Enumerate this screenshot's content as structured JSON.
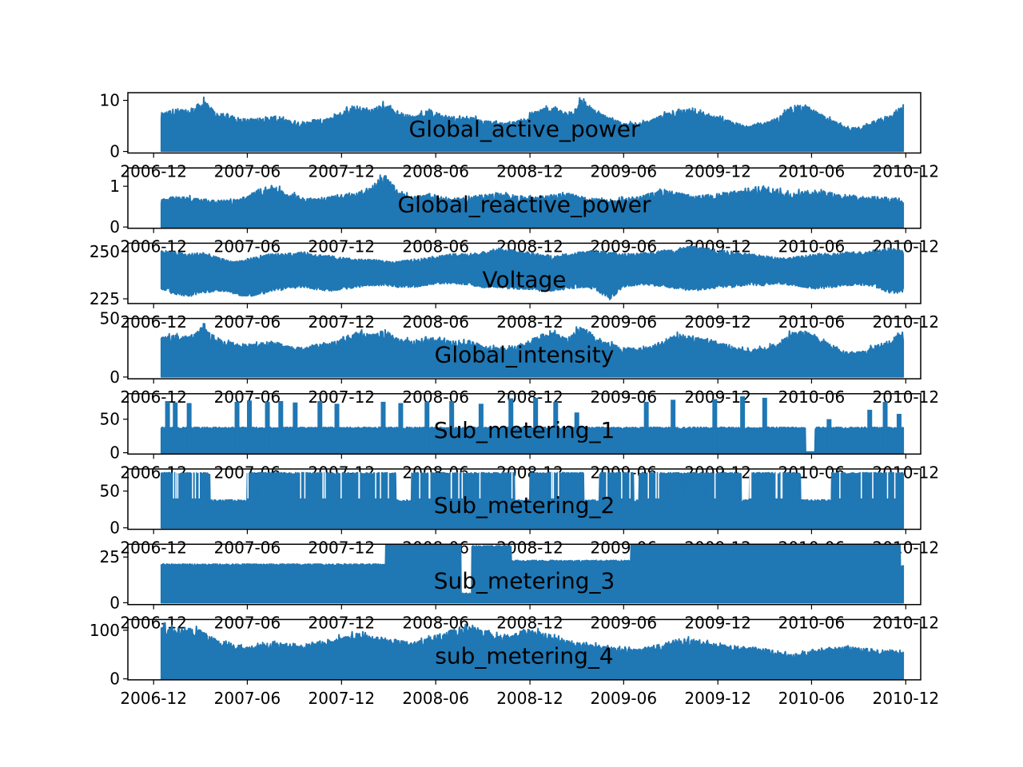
{
  "chart_data": {
    "type": "line",
    "line_color": "#1f77b4",
    "title": "",
    "xlabel": "",
    "x_range": [
      "2006-12-16",
      "2010-11-26"
    ],
    "xlim": [
      "2006-10-12",
      "2010-12-30"
    ],
    "x_ticks": [
      "2006-12",
      "2007-06",
      "2007-12",
      "2008-06",
      "2008-12",
      "2009-06",
      "2009-12",
      "2010-06",
      "2010-12"
    ],
    "x_tick_dates": [
      "2006-12-01",
      "2007-06-01",
      "2007-12-01",
      "2008-06-01",
      "2008-12-01",
      "2009-06-01",
      "2009-12-01",
      "2010-06-01",
      "2010-12-01"
    ],
    "grid": false,
    "legend": "none",
    "panels": [
      {
        "name": "Global_active_power",
        "ylim": [
          -0.3,
          11.5
        ],
        "y_ticks": [
          0,
          10
        ],
        "y_tick_labels": [
          "0",
          "10"
        ],
        "y_min_value": 0.08,
        "upper_envelope": [
          8,
          9,
          8.5,
          10.8,
          8,
          7.5,
          6.8,
          7,
          7.5,
          6.5,
          6,
          6.8,
          7,
          8.5,
          9.5,
          9,
          10,
          8,
          7.5,
          8.5,
          8,
          7,
          7.5,
          6.5,
          6,
          6,
          7,
          9,
          9.5,
          8,
          11.1,
          8.5,
          7,
          6,
          5.8,
          6.5,
          8,
          9,
          8.5,
          8,
          7,
          6,
          5.5,
          6,
          7,
          9.5,
          9.8,
          8,
          6.5,
          5,
          5,
          6.5,
          7.5,
          9.8
        ],
        "base_level": [
          3.5,
          4,
          3.8,
          4,
          3.2,
          3,
          2.8,
          2.8,
          3,
          2.6,
          2.4,
          2.8,
          3,
          3.5,
          3.8,
          3.6,
          3.8,
          3.4,
          3,
          3.4,
          3.2,
          2.8,
          3,
          2.6,
          2.4,
          2.4,
          2.8,
          3.6,
          3.8,
          3.4,
          4,
          3.4,
          3,
          2.6,
          2.4,
          2.8,
          3.2,
          3.6,
          3.4,
          3.2,
          2.8,
          2.4,
          2.2,
          2.4,
          2.8,
          3.6,
          3.8,
          3.2,
          2.6,
          2,
          2,
          2.6,
          3,
          3.8
        ]
      },
      {
        "name": "Global_reactive_power",
        "ylim": [
          -0.03,
          1.45
        ],
        "y_ticks": [
          0,
          1
        ],
        "y_tick_labels": [
          "0",
          "1"
        ],
        "y_min_value": 0,
        "upper_envelope": [
          0.75,
          0.8,
          0.78,
          0.75,
          0.7,
          0.72,
          0.8,
          1,
          1.1,
          0.9,
          0.8,
          0.75,
          0.8,
          0.85,
          0.9,
          1.1,
          1.4,
          0.9,
          0.8,
          0.85,
          0.8,
          0.75,
          0.8,
          0.85,
          0.9,
          0.85,
          0.8,
          0.8,
          0.85,
          0.9,
          0.8,
          0.75,
          0.7,
          0.75,
          0.8,
          0.9,
          1,
          0.9,
          0.8,
          0.85,
          0.9,
          0.95,
          1,
          1.1,
          1,
          0.9,
          0.95,
          1,
          0.9,
          0.85,
          0.8,
          0.8,
          0.78,
          0.75
        ],
        "base_level": [
          0.28,
          0.3,
          0.3,
          0.28,
          0.25,
          0.26,
          0.3,
          0.35,
          0.38,
          0.32,
          0.3,
          0.28,
          0.3,
          0.32,
          0.33,
          0.36,
          0.4,
          0.32,
          0.3,
          0.31,
          0.3,
          0.28,
          0.3,
          0.31,
          0.32,
          0.31,
          0.3,
          0.3,
          0.31,
          0.32,
          0.3,
          0.28,
          0.26,
          0.28,
          0.3,
          0.32,
          0.35,
          0.32,
          0.3,
          0.31,
          0.32,
          0.33,
          0.35,
          0.37,
          0.35,
          0.32,
          0.33,
          0.35,
          0.32,
          0.31,
          0.3,
          0.3,
          0.29,
          0.28
        ]
      },
      {
        "name": "Voltage",
        "ylim": [
          222.5,
          254.5
        ],
        "y_ticks": [
          225,
          250
        ],
        "y_tick_labels": [
          "225",
          "250"
        ],
        "upper_envelope": [
          251,
          250,
          249,
          250,
          247,
          245,
          246,
          248,
          249,
          249,
          250,
          249,
          248,
          247,
          246,
          246,
          245,
          245,
          246,
          247,
          248,
          249,
          249,
          250,
          252,
          251,
          250,
          249,
          248,
          249,
          250,
          251,
          250,
          249,
          249,
          250,
          251,
          252,
          253,
          252,
          251,
          250,
          249,
          248,
          247,
          247,
          248,
          249,
          249,
          250,
          250,
          251,
          252,
          251
        ],
        "lower_envelope": [
          230,
          227,
          226,
          228,
          229,
          228,
          226,
          227,
          229,
          230,
          231,
          230,
          229,
          230,
          231,
          232,
          232,
          231,
          231,
          232,
          233,
          233,
          232,
          231,
          231,
          230,
          230,
          229,
          229,
          230,
          231,
          230,
          224,
          231,
          232,
          232,
          231,
          230,
          229,
          230,
          231,
          231,
          232,
          232,
          233,
          232,
          231,
          230,
          231,
          232,
          232,
          231,
          228,
          228
        ]
      },
      {
        "name": "Global_intensity",
        "ylim": [
          -1.5,
          50
        ],
        "y_ticks": [
          0,
          50
        ],
        "y_tick_labels": [
          "0",
          "50"
        ],
        "y_min_value": 0.2,
        "upper_envelope": [
          36,
          38,
          37,
          47,
          35,
          32,
          30,
          31,
          33,
          29,
          27,
          30,
          31,
          37,
          41,
          39,
          43,
          35,
          33,
          37,
          35,
          31,
          33,
          29,
          27,
          27,
          31,
          39,
          41,
          35,
          48,
          37,
          31,
          27,
          26,
          29,
          35,
          39,
          37,
          35,
          31,
          27,
          25,
          27,
          31,
          41,
          42,
          35,
          29,
          23,
          23,
          29,
          33,
          42
        ],
        "base_level": [
          15,
          17,
          16,
          17,
          14,
          13,
          12,
          12,
          13,
          11,
          10,
          12,
          13,
          15,
          16,
          15,
          16,
          15,
          13,
          15,
          14,
          12,
          13,
          11,
          10,
          10,
          12,
          15,
          16,
          15,
          17,
          15,
          13,
          11,
          10,
          12,
          14,
          15,
          15,
          14,
          12,
          10,
          9,
          10,
          12,
          15,
          16,
          14,
          11,
          9,
          9,
          11,
          13,
          16
        ]
      },
      {
        "name": "Sub_metering_1",
        "ylim": [
          -2,
          88
        ],
        "y_ticks": [
          0,
          50
        ],
        "y_tick_labels": [
          "0",
          "50"
        ],
        "base_level": 38,
        "gap": [
          "2010-05-20",
          "2010-06-08"
        ],
        "spikes": [
          {
            "date": "2006-12-28",
            "value": 77
          },
          {
            "date": "2007-01-12",
            "value": 75
          },
          {
            "date": "2007-02-08",
            "value": 74
          },
          {
            "date": "2007-05-12",
            "value": 76
          },
          {
            "date": "2007-06-05",
            "value": 78
          },
          {
            "date": "2007-07-10",
            "value": 76
          },
          {
            "date": "2007-08-05",
            "value": 77
          },
          {
            "date": "2007-09-02",
            "value": 75
          },
          {
            "date": "2007-10-20",
            "value": 77
          },
          {
            "date": "2007-11-22",
            "value": 73
          },
          {
            "date": "2008-02-20",
            "value": 76
          },
          {
            "date": "2008-03-25",
            "value": 74
          },
          {
            "date": "2008-05-15",
            "value": 76
          },
          {
            "date": "2008-07-02",
            "value": 77
          },
          {
            "date": "2008-08-28",
            "value": 73
          },
          {
            "date": "2008-10-25",
            "value": 81
          },
          {
            "date": "2008-12-12",
            "value": 82
          },
          {
            "date": "2009-01-20",
            "value": 76
          },
          {
            "date": "2009-03-02",
            "value": 60
          },
          {
            "date": "2009-07-15",
            "value": 76
          },
          {
            "date": "2009-09-05",
            "value": 79
          },
          {
            "date": "2009-11-25",
            "value": 80
          },
          {
            "date": "2010-01-18",
            "value": 84
          },
          {
            "date": "2010-03-02",
            "value": 82
          },
          {
            "date": "2010-07-05",
            "value": 50
          },
          {
            "date": "2010-09-22",
            "value": 64
          },
          {
            "date": "2010-10-22",
            "value": 76
          },
          {
            "date": "2010-11-18",
            "value": 58
          }
        ]
      },
      {
        "name": "Sub_metering_2",
        "ylim": [
          -2,
          80
        ],
        "y_ticks": [
          0,
          50
        ],
        "y_tick_labels": [
          "0",
          "50"
        ],
        "base_level": 38,
        "dense_level": 72,
        "dense_intervals": [
          [
            "2006-12-16",
            "2007-03-20"
          ],
          [
            "2007-06-01",
            "2008-03-15"
          ],
          [
            "2008-04-15",
            "2008-11-01"
          ],
          [
            "2008-12-01",
            "2009-03-15"
          ],
          [
            "2009-04-15",
            "2009-06-20"
          ],
          [
            "2009-07-01",
            "2010-01-15"
          ],
          [
            "2010-02-01",
            "2010-05-10"
          ],
          [
            "2010-07-10",
            "2010-11-26"
          ]
        ]
      },
      {
        "name": "Sub_metering_3",
        "ylim": [
          -1,
          32
        ],
        "y_ticks": [
          0,
          25
        ],
        "y_tick_labels": [
          "0",
          "25"
        ],
        "levels": [
          {
            "from": "2006-12-16",
            "to": "2008-02-25",
            "value": 20
          },
          {
            "from": "2008-02-25",
            "to": "2008-07-20",
            "value": 31
          },
          {
            "from": "2008-07-20",
            "to": "2008-08-10",
            "value": 4
          },
          {
            "from": "2008-08-10",
            "to": "2008-10-25",
            "value": 30
          },
          {
            "from": "2008-10-25",
            "to": "2009-06-15",
            "value": 22
          },
          {
            "from": "2009-06-15",
            "to": "2010-11-20",
            "value": 31
          },
          {
            "from": "2010-11-20",
            "to": "2010-11-26",
            "value": 19
          }
        ]
      },
      {
        "name": "sub_metering_4",
        "ylim": [
          -2,
          122
        ],
        "y_ticks": [
          0,
          100
        ],
        "y_tick_labels": [
          "0",
          "100"
        ],
        "y_min_value": 0,
        "upper_envelope": [
          118,
          110,
          115,
          105,
          85,
          80,
          70,
          75,
          80,
          80,
          75,
          80,
          85,
          95,
          100,
          95,
          90,
          85,
          80,
          90,
          100,
          110,
          115,
          110,
          100,
          95,
          110,
          105,
          95,
          85,
          80,
          75,
          70,
          68,
          65,
          72,
          80,
          85,
          88,
          82,
          75,
          72,
          70,
          68,
          60,
          55,
          58,
          65,
          70,
          72,
          68,
          65,
          62,
          60
        ],
        "base_level": [
          45,
          42,
          44,
          40,
          33,
          31,
          27,
          29,
          31,
          31,
          29,
          31,
          33,
          37,
          39,
          37,
          35,
          33,
          31,
          35,
          39,
          43,
          45,
          43,
          39,
          37,
          43,
          41,
          37,
          33,
          31,
          29,
          24,
          26,
          25,
          28,
          31,
          33,
          34,
          32,
          29,
          28,
          27,
          26,
          23,
          15,
          22,
          25,
          27,
          28,
          26,
          25,
          24,
          23
        ]
      }
    ]
  }
}
